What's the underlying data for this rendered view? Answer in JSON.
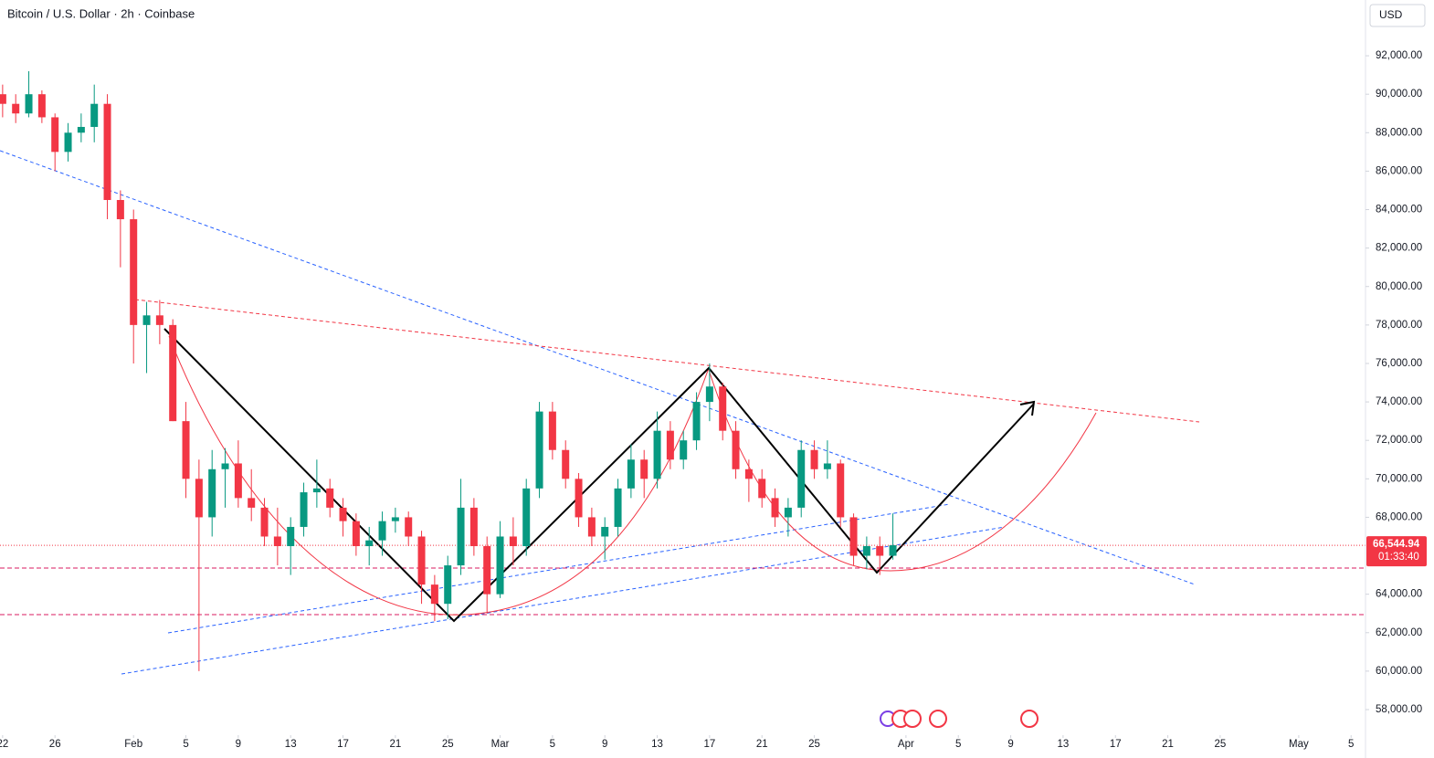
{
  "chart_data": {
    "type": "candlestick",
    "title": "Bitcoin / U.S. Dollar · 2h · Coinbase",
    "currency": "USD",
    "up_color": "#089981",
    "down_color": "#f23645",
    "grid": false,
    "last_price_label": "66,544.94",
    "countdown": "01:33:40",
    "x": [
      0,
      1,
      2,
      3,
      4,
      5,
      6,
      7,
      8,
      9,
      10,
      11,
      12,
      13,
      14,
      15,
      16,
      17,
      18,
      19,
      20,
      21,
      22,
      23,
      24,
      25,
      26,
      27,
      28,
      29,
      30,
      31,
      32,
      33,
      34,
      35,
      36,
      37,
      38,
      39,
      40,
      41,
      42,
      43,
      44,
      45,
      46,
      47,
      48,
      49,
      50,
      51,
      52,
      53,
      54,
      55,
      56,
      57,
      58,
      59,
      60,
      61,
      62,
      63,
      64,
      65,
      66,
      67,
      68
    ],
    "open": [
      90000,
      89500,
      89000,
      90000,
      88800,
      87000,
      88000,
      88300,
      89500,
      84500,
      83500,
      78000,
      78500,
      78000,
      73000,
      70000,
      68000,
      70500,
      70800,
      69000,
      68500,
      67000,
      66500,
      67500,
      69300,
      69500,
      68500,
      67800,
      66500,
      66800,
      67800,
      68000,
      67000,
      64500,
      63500,
      65500,
      68500,
      66500,
      64000,
      67000,
      66500,
      69500,
      73500,
      71500,
      70000,
      68000,
      67000,
      67500,
      69500,
      71000,
      70000,
      72500,
      71000,
      72000,
      74000,
      74800,
      72500,
      70500,
      70000,
      69000,
      68000,
      68500,
      71500,
      70500,
      70800,
      68000,
      66000,
      66500,
      66000
    ],
    "high": [
      90500,
      90000,
      91200,
      90200,
      89000,
      88500,
      89000,
      90500,
      90000,
      85000,
      84000,
      79200,
      79300,
      78300,
      74000,
      71000,
      71500,
      71600,
      72000,
      70500,
      69000,
      68500,
      68000,
      69800,
      71000,
      70000,
      69000,
      68200,
      67500,
      68300,
      68500,
      68300,
      67300,
      65000,
      66000,
      70000,
      69000,
      67000,
      67800,
      68000,
      70000,
      74000,
      74000,
      72000,
      70300,
      68500,
      68000,
      70000,
      71800,
      71500,
      73500,
      73000,
      72500,
      74500,
      76000,
      75000,
      73000,
      71000,
      70500,
      69500,
      69000,
      72000,
      72000,
      72000,
      71000,
      68200,
      67000,
      67000,
      68200
    ],
    "low": [
      88800,
      88500,
      88800,
      88500,
      86000,
      86500,
      87500,
      87500,
      83500,
      81000,
      76000,
      75500,
      77000,
      73000,
      69000,
      60000,
      67000,
      68500,
      68500,
      67800,
      66500,
      65500,
      65000,
      67000,
      68500,
      68000,
      67000,
      66000,
      65500,
      66000,
      67200,
      66500,
      63500,
      62600,
      62700,
      65000,
      66000,
      63000,
      63800,
      65500,
      66000,
      69000,
      71000,
      69500,
      67500,
      66500,
      65800,
      67000,
      69000,
      69000,
      69500,
      70500,
      70500,
      71500,
      73000,
      72000,
      70000,
      68800,
      68500,
      67500,
      67000,
      68000,
      70000,
      70000,
      67500,
      65500,
      65300,
      65000,
      65800
    ],
    "close": [
      89500,
      89000,
      90000,
      88800,
      87000,
      88000,
      88300,
      89500,
      84500,
      83500,
      78000,
      78500,
      78000,
      73000,
      70000,
      68000,
      70500,
      70800,
      69000,
      68500,
      67000,
      66500,
      67500,
      69300,
      69500,
      68500,
      67800,
      66500,
      66800,
      67800,
      68000,
      67000,
      64500,
      63500,
      65500,
      68500,
      66500,
      64000,
      67000,
      66500,
      69500,
      73500,
      71500,
      70000,
      68000,
      67000,
      67500,
      69500,
      71000,
      70000,
      72500,
      71000,
      72000,
      74000,
      74800,
      72500,
      70500,
      70000,
      69000,
      68000,
      68500,
      71500,
      70500,
      70800,
      68000,
      66000,
      66500,
      66000,
      66544.94
    ],
    "xlim": [
      -0.2,
      104.1
    ],
    "xticks": [
      {
        "value": 0,
        "label": "22"
      },
      {
        "value": 4,
        "label": "26"
      },
      {
        "value": 10,
        "label": "Feb"
      },
      {
        "value": 14,
        "label": "5"
      },
      {
        "value": 18,
        "label": "9"
      },
      {
        "value": 22,
        "label": "13"
      },
      {
        "value": 26,
        "label": "17"
      },
      {
        "value": 30,
        "label": "21"
      },
      {
        "value": 34,
        "label": "25"
      },
      {
        "value": 38,
        "label": "Mar"
      },
      {
        "value": 42,
        "label": "5"
      },
      {
        "value": 46,
        "label": "9"
      },
      {
        "value": 50,
        "label": "13"
      },
      {
        "value": 54,
        "label": "17"
      },
      {
        "value": 58,
        "label": "21"
      },
      {
        "value": 62,
        "label": "25"
      },
      {
        "value": 69,
        "label": "Apr"
      },
      {
        "value": 73,
        "label": "5"
      },
      {
        "value": 77,
        "label": "9"
      },
      {
        "value": 81,
        "label": "13"
      },
      {
        "value": 85,
        "label": "17"
      },
      {
        "value": 89,
        "label": "21"
      },
      {
        "value": 93,
        "label": "25"
      },
      {
        "value": 99,
        "label": "May"
      },
      {
        "value": 103,
        "label": "5"
      }
    ],
    "ylim": [
      56670,
      94900
    ],
    "yticks": [
      {
        "value": 92000,
        "label": "92,000.00"
      },
      {
        "value": 90000,
        "label": "90,000.00"
      },
      {
        "value": 88000,
        "label": "88,000.00"
      },
      {
        "value": 86000,
        "label": "86,000.00"
      },
      {
        "value": 84000,
        "label": "84,000.00"
      },
      {
        "value": 82000,
        "label": "82,000.00"
      },
      {
        "value": 80000,
        "label": "80,000.00"
      },
      {
        "value": 78000,
        "label": "78,000.00"
      },
      {
        "value": 76000,
        "label": "76,000.00"
      },
      {
        "value": 74000,
        "label": "74,000.00"
      },
      {
        "value": 72000,
        "label": "72,000.00"
      },
      {
        "value": 70000,
        "label": "70,000.00"
      },
      {
        "value": 68000,
        "label": "68,000.00"
      },
      {
        "value": 64000,
        "label": "64,000.00"
      },
      {
        "value": 62000,
        "label": "62,000.00"
      },
      {
        "value": 60000,
        "label": "60,000.00"
      },
      {
        "value": 58000,
        "label": "58,000.00"
      }
    ]
  }
}
